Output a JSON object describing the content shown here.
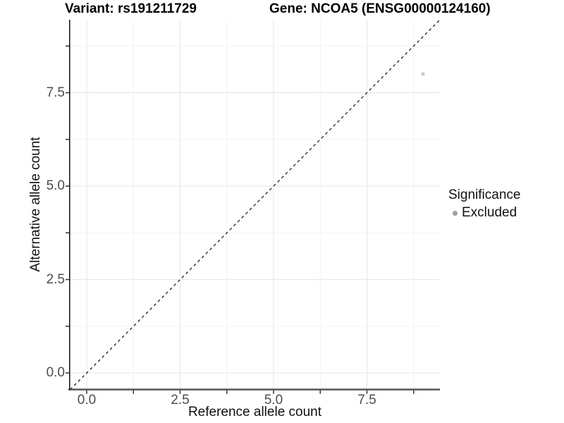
{
  "header": {
    "variant_title": "Variant: rs191211729",
    "gene_title": "Gene: NCOA5 (ENSG00000124160)"
  },
  "x_axis": {
    "title": "Reference allele count",
    "tick_labels": [
      "0.0",
      "2.5",
      "5.0",
      "7.5"
    ]
  },
  "y_axis": {
    "title": "Alternative allele count",
    "tick_labels": [
      "0.0",
      "2.5",
      "5.0",
      "7.5"
    ]
  },
  "legend": {
    "title": "Significance",
    "items": [
      {
        "label": "Excluded",
        "color": "#9e9e9e"
      }
    ]
  },
  "chart_data": {
    "type": "scatter",
    "title": "Variant: rs191211729 | Gene: NCOA5 (ENSG00000124160)",
    "xlabel": "Reference allele count",
    "ylabel": "Alternative allele count",
    "xlim": [
      -0.47,
      9.45
    ],
    "ylim": [
      -0.45,
      9.45
    ],
    "x_ticks": [
      0.0,
      2.5,
      5.0,
      7.5
    ],
    "y_ticks": [
      0.0,
      2.5,
      5.0,
      7.5
    ],
    "minor_tick_interval": 1.25,
    "grid": true,
    "legend_position": "right",
    "series": [
      {
        "name": "Excluded",
        "color": "#c9c9c9",
        "points": [
          {
            "x": 9,
            "y": 8
          }
        ]
      }
    ],
    "reference_line": {
      "description": "identity line y = x",
      "style": "dashed",
      "color": "#1a1a1a",
      "through": [
        0,
        0
      ],
      "slope": 1
    }
  },
  "colors": {
    "background": "#ffffff",
    "grid_major": "#e9e9e9",
    "grid_minor": "#f4f4f4",
    "axis_line_bottom": "#555555",
    "axis_line_left": "#111111",
    "tick_mark": "#333333",
    "tick_label": "#4d4d4d",
    "point": "#c9c9c9"
  }
}
